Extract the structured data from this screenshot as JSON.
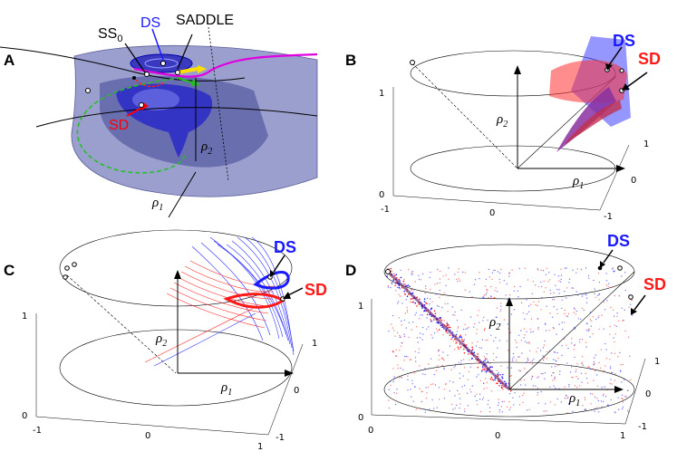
{
  "panels": [
    {
      "label": "A"
    },
    {
      "label": "B"
    },
    {
      "label": "C"
    },
    {
      "label": "D"
    }
  ],
  "panel_a": {
    "ds": "DS",
    "ss": "SS",
    "ss_sub": "0",
    "saddle": "SADDLE",
    "sd": "SD",
    "rho2": "ρ",
    "rho2_sub": "2",
    "rho1": "ρ",
    "rho1_sub": "1"
  },
  "panel_b": {
    "ds": "DS",
    "sd": "SD",
    "rho2": "ρ",
    "rho2_sub": "2",
    "rho1": "ρ",
    "rho1_sub": "1",
    "ticks": [
      "1",
      "0",
      "-1",
      "0",
      "1",
      "0",
      "-1"
    ]
  },
  "panel_c": {
    "ds": "DS",
    "sd": "SD",
    "rho2": "ρ",
    "rho2_sub": "2",
    "rho1": "ρ",
    "rho1_sub": "1",
    "ticks": [
      "1",
      "0",
      "-1",
      "0",
      "1",
      "1",
      "0",
      "-1"
    ]
  },
  "panel_d": {
    "ds": "DS",
    "sd": "SD",
    "rho2": "ρ",
    "rho2_sub": "2",
    "rho1": "ρ",
    "rho1_sub": "1",
    "ticks": [
      "1",
      "0",
      "0",
      "0",
      "1",
      "1",
      "0",
      "-1"
    ]
  },
  "colors": {
    "ds": "#1a1aff",
    "sd": "#ff1a1a",
    "surface": "#7b7fc4",
    "magenta": "#e000e0",
    "green": "#22c022",
    "yellow": "#ffe000"
  }
}
